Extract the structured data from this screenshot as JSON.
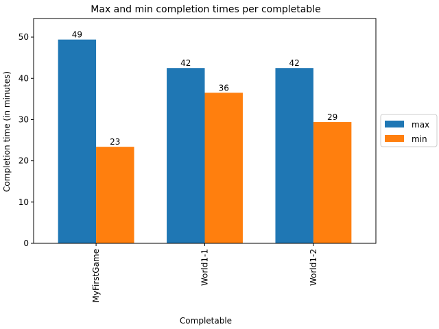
{
  "chart_data": {
    "type": "bar",
    "title": "Max and min completion times per completable",
    "xlabel": "Completable",
    "ylabel": "Completion time (in minutes)",
    "categories": [
      "MyFirstGame",
      "World1-1",
      "World1-2"
    ],
    "series": [
      {
        "name": "max",
        "values": [
          49.4,
          42.5,
          42.5
        ],
        "labels": [
          "49",
          "42",
          "42"
        ],
        "color": "#1f77b4"
      },
      {
        "name": "min",
        "values": [
          23.4,
          36.5,
          29.4
        ],
        "labels": [
          "23",
          "36",
          "29"
        ],
        "color": "#ff7f0e"
      }
    ],
    "ylim": [
      0,
      54.5
    ],
    "yticks": [
      0,
      10,
      20,
      30,
      40,
      50
    ],
    "ytick_labels": [
      "0",
      "10",
      "20",
      "30",
      "40",
      "50"
    ],
    "grid": false,
    "legend_position": "right-center-outside"
  }
}
